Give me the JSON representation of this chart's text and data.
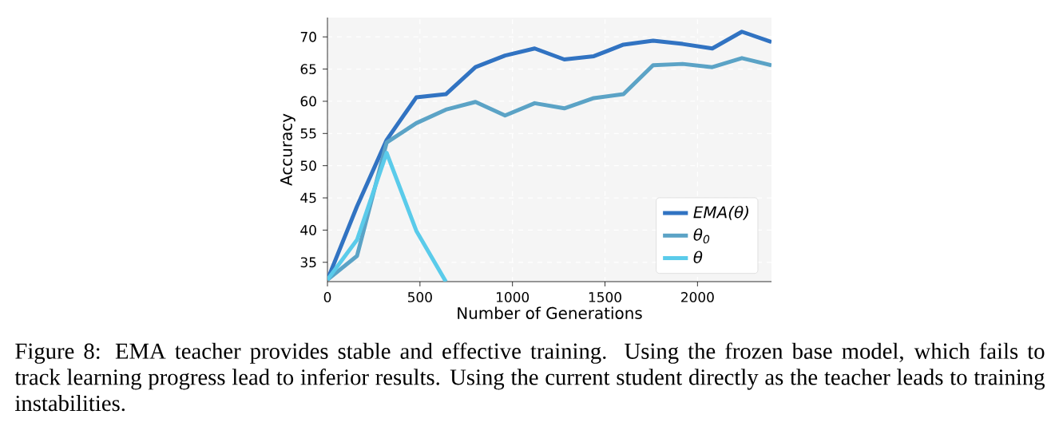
{
  "chart_data": {
    "type": "line",
    "xlabel": "Number of Generations",
    "ylabel": "Accuracy",
    "annotations": [
      "Figure 8: EMA teacher provides stable and effective training.  Using the frozen base model, which fails to track learning progress lead to inferior results.  Using the current student directly as the teacher leads to training instabilities."
    ],
    "x": [
      0,
      160,
      320,
      480,
      640,
      800,
      960,
      1120,
      1280,
      1440,
      1600,
      1760,
      1920,
      2080,
      2240,
      2400
    ],
    "series": [
      {
        "name": "*EMA*(*θ*)",
        "color": "#3173c2",
        "values": [
          32.3,
          43.7,
          54.0,
          60.6,
          61.1,
          65.3,
          67.1,
          68.2,
          66.5,
          67.0,
          68.8,
          69.4,
          68.9,
          68.2,
          70.8,
          69.2
        ]
      },
      {
        "name": "*θ*$_{0}$",
        "color": "#5ba3c6",
        "values": [
          32.3,
          36.0,
          53.6,
          56.6,
          58.7,
          59.9,
          57.8,
          59.7,
          58.9,
          60.5,
          61.1,
          65.6,
          65.8,
          65.3,
          66.7,
          65.6
        ]
      },
      {
        "name": "*θ* ",
        "color": "#5acbea",
        "values": [
          32.3,
          38.5,
          52.0,
          39.9,
          32.0,
          null,
          null,
          null,
          null,
          null,
          null,
          null,
          null,
          null,
          null,
          null
        ]
      }
    ],
    "xlim": [
      0,
      2400
    ],
    "ylim": [
      32,
      73
    ],
    "xticks": [
      0,
      500,
      1000,
      1500,
      2000
    ],
    "yticks": [
      35,
      40,
      45,
      50,
      55,
      60,
      65,
      70
    ],
    "grid": true,
    "legend": "bottom right",
    "line_style": "solid",
    "marker": "none"
  }
}
